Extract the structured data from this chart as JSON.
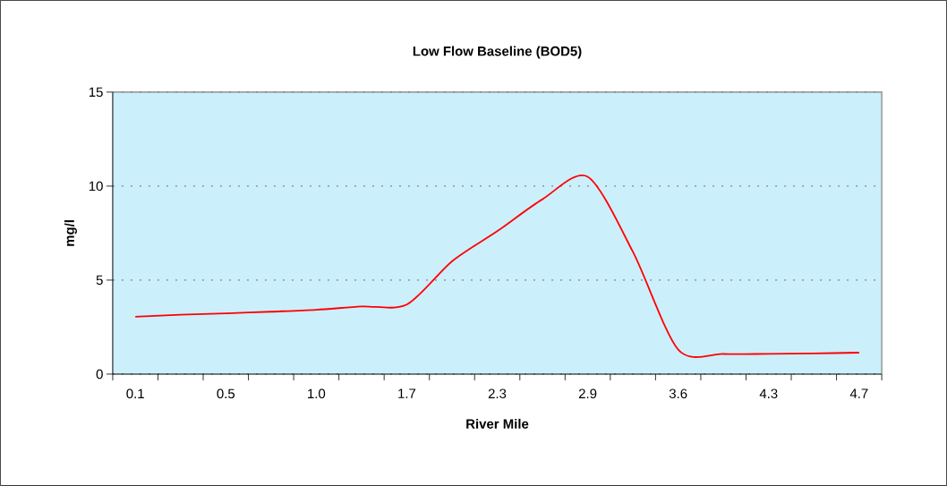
{
  "chart_data": {
    "type": "line",
    "title": "Low Flow Baseline (BOD5)",
    "xlabel": "River Mile",
    "ylabel": "mg/l",
    "categories": [
      "0.1",
      null,
      "0.5",
      null,
      "1.0",
      null,
      "1.7",
      null,
      "2.3",
      null,
      "2.9",
      null,
      "3.6",
      null,
      "4.3",
      null,
      "4.7"
    ],
    "series": [
      {
        "color": "#ff0000",
        "values": [
          3.05,
          3.16,
          3.23,
          3.32,
          3.42,
          3.6,
          3.7,
          6.0,
          7.6,
          9.3,
          10.5,
          6.5,
          1.3,
          1.07,
          1.08,
          1.1,
          1.14
        ]
      }
    ],
    "ylim": [
      0,
      15
    ],
    "yticks": [
      0,
      5,
      10,
      15
    ],
    "grid": "y",
    "marker": "none",
    "line_style": "solid"
  }
}
